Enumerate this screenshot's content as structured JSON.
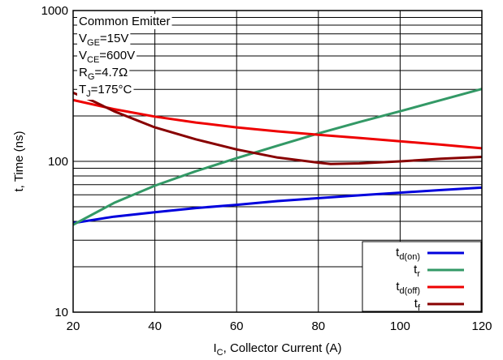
{
  "chart_data": {
    "type": "line",
    "x_scale": "linear",
    "y_scale": "log",
    "xlim": [
      20,
      120
    ],
    "ylim": [
      10,
      1000
    ],
    "x_ticks": [
      20,
      40,
      60,
      80,
      100,
      120
    ],
    "y_ticks": [
      10,
      100,
      1000
    ],
    "y_minor_ticks": [
      20,
      30,
      40,
      50,
      60,
      70,
      80,
      90,
      200,
      300,
      400,
      500,
      600,
      700,
      800,
      900
    ],
    "grid": true,
    "legend_position": "bottom-right",
    "xlabel": {
      "main": "I",
      "sub": "C",
      "rest": ", Collector Current (A)"
    },
    "ylabel": "t, Time (ns)",
    "conditions": [
      {
        "main": "Common Emitter",
        "sub": "",
        "rest": ""
      },
      {
        "main": "V",
        "sub": "GE",
        "rest": "=15V"
      },
      {
        "main": "V",
        "sub": "CE",
        "rest": "=600V"
      },
      {
        "main": "R",
        "sub": "G",
        "rest": "=4.7Ω"
      },
      {
        "main": "T",
        "sub": "J",
        "rest": "=175°C"
      }
    ],
    "series": [
      {
        "name": {
          "main": "t",
          "sub": "d(on)"
        },
        "color": "#0000dd",
        "x": [
          20,
          30,
          40,
          50,
          60,
          70,
          80,
          90,
          100,
          110,
          120
        ],
        "y": [
          39,
          43,
          46,
          49,
          51.5,
          54.5,
          57,
          59.5,
          62,
          64.5,
          67
        ]
      },
      {
        "name": {
          "main": "t",
          "sub": "r"
        },
        "color": "#339966",
        "x": [
          20,
          30,
          40,
          50,
          60,
          70,
          80,
          90,
          100,
          110,
          120
        ],
        "y": [
          38,
          53,
          69,
          86,
          105,
          127,
          153,
          182,
          215,
          255,
          302
        ]
      },
      {
        "name": {
          "main": "t",
          "sub": "d(off)"
        },
        "color": "#ee0000",
        "x": [
          20,
          30,
          40,
          50,
          60,
          70,
          80,
          90,
          100,
          110,
          120
        ],
        "y": [
          255,
          222,
          198,
          181,
          168,
          158,
          150,
          143,
          136,
          129,
          122
        ]
      },
      {
        "name": {
          "main": "t",
          "sub": "f"
        },
        "color": "#880000",
        "x": [
          20,
          25,
          30,
          40,
          50,
          60,
          70,
          80,
          83,
          90,
          100,
          110,
          120
        ],
        "y": [
          285,
          250,
          215,
          168,
          140,
          120,
          106,
          98,
          96,
          97,
          100,
          104,
          107
        ]
      }
    ]
  }
}
